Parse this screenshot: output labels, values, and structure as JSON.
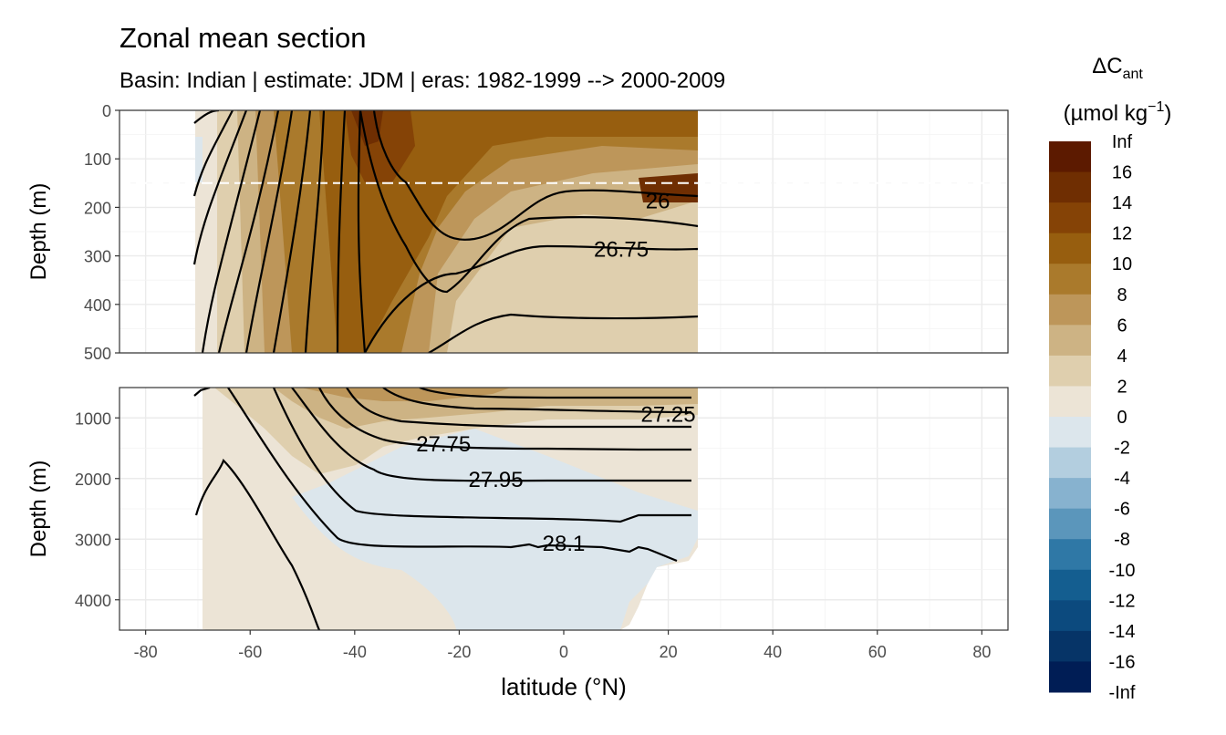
{
  "chart_data": {
    "type": "heatmap",
    "title": "Zonal mean section",
    "subtitle": "Basin: Indian | estimate: JDM  | eras: 1982-1999 --> 2000-2009",
    "xlabel": "latitude (°N)",
    "ylabel": "Depth (m)",
    "x_ticks": [
      "-80",
      "-60",
      "-40",
      "-20",
      "0",
      "20",
      "40",
      "60",
      "80"
    ],
    "x_tick_values": [
      -80,
      -60,
      -40,
      -20,
      0,
      20,
      40,
      60,
      80
    ],
    "xlim": [
      -85,
      85
    ],
    "panels": [
      {
        "name": "upper",
        "ylim": [
          500,
          0
        ],
        "y_ticks": [
          "0",
          "100",
          "200",
          "300",
          "400",
          "500"
        ],
        "y_tick_values": [
          0,
          100,
          200,
          300,
          400,
          500
        ],
        "reference_line_depth": 150,
        "isopycnal_labels": [
          {
            "text": "26",
            "lat": 18,
            "depth": 185
          },
          {
            "text": "26.75",
            "lat": 11,
            "depth": 285
          }
        ]
      },
      {
        "name": "lower",
        "ylim": [
          4500,
          500
        ],
        "y_ticks": [
          "1000",
          "2000",
          "3000",
          "4000"
        ],
        "y_tick_values": [
          1000,
          2000,
          3000,
          4000
        ],
        "isopycnal_labels": [
          {
            "text": "27.25",
            "lat": 20,
            "depth": 930
          },
          {
            "text": "27.75",
            "lat": -23,
            "depth": 1420
          },
          {
            "text": "27.95",
            "lat": -13,
            "depth": 2000
          },
          {
            "text": "28.1",
            "lat": 0,
            "depth": 3060
          }
        ]
      }
    ],
    "legend": {
      "title_main": "ΔC",
      "title_sub": "ant",
      "units": "(µmol kg",
      "units_sup": "−1",
      "units_close": ")",
      "placement": "right",
      "labels": [
        "Inf",
        "16",
        "14",
        "12",
        "10",
        "8",
        "6",
        "4",
        "2",
        "0",
        "-2",
        "-4",
        "-6",
        "-8",
        "-10",
        "-12",
        "-14",
        "-16",
        "-Inf"
      ],
      "colors": [
        "#5c1a00",
        "#6f2e02",
        "#854306",
        "#975e0f",
        "#aa7a2c",
        "#bd965a",
        "#cdb384",
        "#dfcfae",
        "#ece4d6",
        "#dce6ec",
        "#b3cedf",
        "#87b2cf",
        "#5b96bb",
        "#2f78a6",
        "#145e90",
        "#0c4a7e",
        "#063467",
        "#001d55"
      ]
    },
    "grid": true
  }
}
